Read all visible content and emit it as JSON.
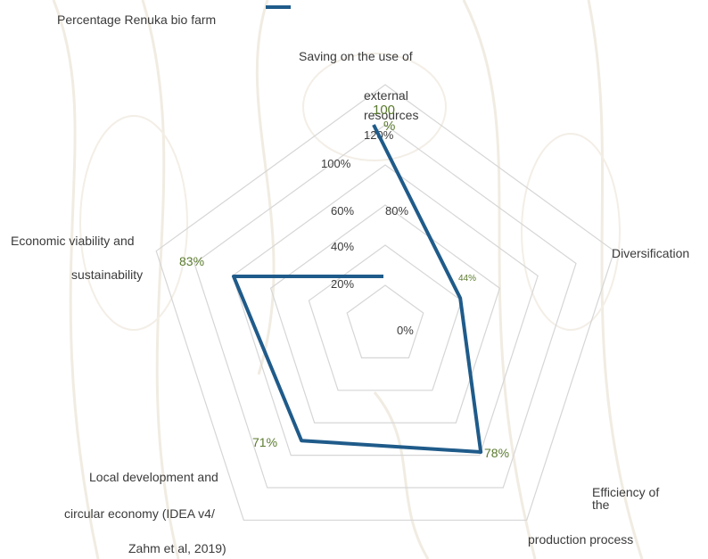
{
  "chart_data": {
    "type": "radar",
    "title": "",
    "legend": {
      "position": "top-left",
      "entries": [
        {
          "label": "Percentage Renuka bio farm",
          "color": "#1f5b8a"
        }
      ]
    },
    "axes": [
      {
        "name": "Saving on the use of external resources",
        "value": 100,
        "value_label": "100 %"
      },
      {
        "name": "Diversification",
        "value": 44,
        "value_label": "44%"
      },
      {
        "name": "Efficiency of the production process",
        "value": 78,
        "value_label": "78%"
      },
      {
        "name": "Local development and circular economy (IDEA v4/ Zahm et al, 2019)",
        "value": 71,
        "value_label": "71%"
      },
      {
        "name": "Economic viability and sustainability",
        "value": 83,
        "value_label": "83%"
      }
    ],
    "series": [
      {
        "name": "Percentage Renuka bio farm",
        "values": [
          100,
          44,
          78,
          71,
          83
        ],
        "color": "#1f5b8a"
      }
    ],
    "radial_ticks": [
      "0%",
      "20%",
      "40%",
      "60%",
      "80%",
      "100%",
      "120%"
    ],
    "radial_range": [
      0,
      120
    ]
  },
  "labels": {
    "legend": "Percentage Renuka bio farm",
    "axis1_line1": "Saving on the use of",
    "axis1_line2": "external",
    "axis1_line3": "resources",
    "axis2": "Diversification",
    "axis3_line1": "Efficiency of",
    "axis3_line2": "the",
    "axis3_line3": "production process",
    "axis4_line1": "Local development and",
    "axis4_line2": "circular economy (IDEA v4/",
    "axis4_line3": "Zahm et al, 2019)",
    "axis5_line1": "Economic viability and",
    "axis5_line2": "sustainability",
    "val1": "100",
    "val1_pct": "%",
    "val2": "44%",
    "val3": "78%",
    "val4": "71%",
    "val5": "83%"
  }
}
